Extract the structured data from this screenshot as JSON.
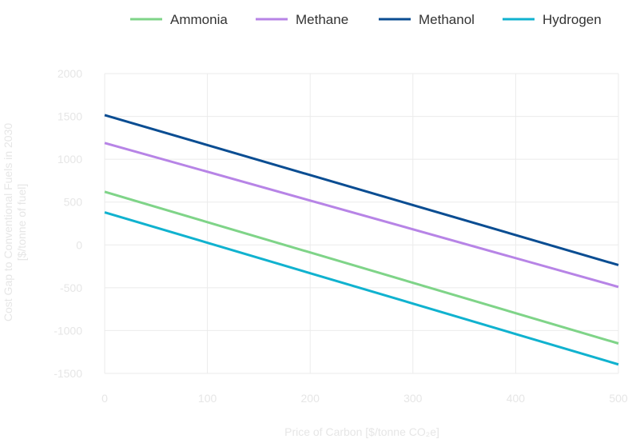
{
  "chart_data": {
    "type": "line",
    "title": "",
    "xlabel": "Price of Carbon [$/tonne CO₂e]",
    "ylabel_line1": "Cost Gap to Conventional Fuels in 2030",
    "ylabel_line2": "[$/tonne of fuel]",
    "xlim": [
      0,
      500
    ],
    "ylim": [
      -1500,
      2000
    ],
    "x_ticks": [
      0,
      100,
      200,
      300,
      400,
      500
    ],
    "y_ticks": [
      2000,
      1500,
      1000,
      500,
      0,
      -500,
      -1000,
      -1500
    ],
    "grid": true,
    "legend_position": "top",
    "series": [
      {
        "name": "Ammonia",
        "color": "#7fd488",
        "x": [
          0,
          500
        ],
        "y": [
          620,
          -1150
        ]
      },
      {
        "name": "Methane",
        "color": "#b784e6",
        "x": [
          0,
          500
        ],
        "y": [
          1190,
          -490
        ]
      },
      {
        "name": "Methanol",
        "color": "#0a4d92",
        "x": [
          0,
          500
        ],
        "y": [
          1515,
          -235
        ]
      },
      {
        "name": "Hydrogen",
        "color": "#10b2cf",
        "x": [
          0,
          500
        ],
        "y": [
          380,
          -1395
        ]
      }
    ]
  }
}
